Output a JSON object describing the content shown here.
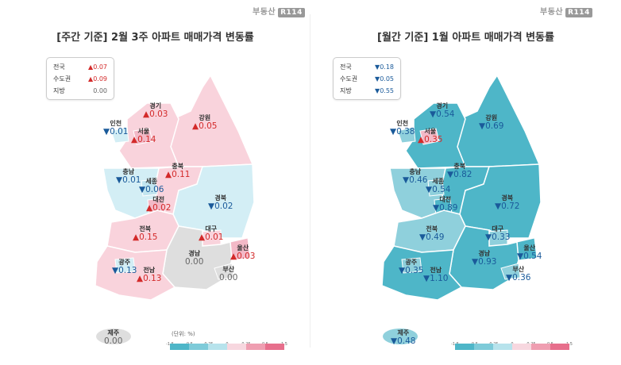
{
  "brand": {
    "name": "부동산",
    "badge": "R114"
  },
  "weekly": {
    "title": "[주간 기준] 2월 3주 아파트 매매가격 변동률",
    "summary": [
      {
        "label": "전국",
        "value": "0.07",
        "dir": "up"
      },
      {
        "label": "수도권",
        "value": "0.09",
        "dir": "up"
      },
      {
        "label": "지방",
        "value": "0.00",
        "dir": "none"
      }
    ],
    "regions": {
      "incheon": {
        "name": "인천",
        "value": "0.01",
        "dir": "down"
      },
      "gyeonggi": {
        "name": "경기",
        "value": "0.03",
        "dir": "up"
      },
      "seoul": {
        "name": "서울",
        "value": "0.14",
        "dir": "up"
      },
      "gangwon": {
        "name": "강원",
        "value": "0.05",
        "dir": "up"
      },
      "chungbuk": {
        "name": "충북",
        "value": "0.11",
        "dir": "up"
      },
      "chungnam": {
        "name": "충남",
        "value": "0.01",
        "dir": "down"
      },
      "sejong": {
        "name": "세종",
        "value": "0.06",
        "dir": "down"
      },
      "daejeon": {
        "name": "대전",
        "value": "0.02",
        "dir": "up"
      },
      "gyeongbuk": {
        "name": "경북",
        "value": "0.02",
        "dir": "down"
      },
      "jeonbuk": {
        "name": "전북",
        "value": "0.15",
        "dir": "up"
      },
      "daegu": {
        "name": "대구",
        "value": "0.01",
        "dir": "up"
      },
      "ulsan": {
        "name": "울산",
        "value": "0.03",
        "dir": "up"
      },
      "gyeongnam": {
        "name": "경남",
        "value": "0.00",
        "dir": "none"
      },
      "busan": {
        "name": "부산",
        "value": "0.00",
        "dir": "none"
      },
      "gwangju": {
        "name": "광주",
        "value": "0.13",
        "dir": "down"
      },
      "jeonnam": {
        "name": "전남",
        "value": "0.13",
        "dir": "up"
      },
      "jeju": {
        "name": "제주",
        "value": "0.00",
        "dir": "none"
      }
    }
  },
  "monthly": {
    "title": "[월간 기준] 1월 아파트 매매가격 변동률",
    "summary": [
      {
        "label": "전국",
        "value": "0.18",
        "dir": "down"
      },
      {
        "label": "수도권",
        "value": "0.05",
        "dir": "down"
      },
      {
        "label": "지방",
        "value": "0.55",
        "dir": "down"
      }
    ],
    "regions": {
      "incheon": {
        "name": "인천",
        "value": "0.38",
        "dir": "down"
      },
      "gyeonggi": {
        "name": "경기",
        "value": "0.54",
        "dir": "down"
      },
      "seoul": {
        "name": "서울",
        "value": "0.35",
        "dir": "up"
      },
      "gangwon": {
        "name": "강원",
        "value": "0.69",
        "dir": "down"
      },
      "chungbuk": {
        "name": "충북",
        "value": "0.82",
        "dir": "down"
      },
      "chungnam": {
        "name": "충남",
        "value": "0.46",
        "dir": "down"
      },
      "sejong": {
        "name": "세종",
        "value": "0.54",
        "dir": "down"
      },
      "daejeon": {
        "name": "대전",
        "value": "0.89",
        "dir": "down"
      },
      "gyeongbuk": {
        "name": "경북",
        "value": "0.72",
        "dir": "down"
      },
      "jeonbuk": {
        "name": "전북",
        "value": "0.49",
        "dir": "down"
      },
      "daegu": {
        "name": "대구",
        "value": "0.33",
        "dir": "down"
      },
      "ulsan": {
        "name": "울산",
        "value": "0.54",
        "dir": "down"
      },
      "gyeongnam": {
        "name": "경남",
        "value": "0.93",
        "dir": "down"
      },
      "busan": {
        "name": "부산",
        "value": "0.36",
        "dir": "down"
      },
      "gwangju": {
        "name": "광주",
        "value": "0.35",
        "dir": "down"
      },
      "jeonnam": {
        "name": "전남",
        "value": "1.10",
        "dir": "down"
      },
      "jeju": {
        "name": "제주",
        "value": "0.48",
        "dir": "down"
      }
    }
  },
  "legend": {
    "unit": "(단위: %)",
    "ticks": [
      "-1.5",
      "-0.5",
      "-0.25",
      "0",
      "0.25",
      "0.5",
      "1.5"
    ],
    "colors": [
      "#4eb6c8",
      "#7ecbd9",
      "#b7e3ec",
      "#f7d7df",
      "#ef9eb1",
      "#e76f8c"
    ]
  },
  "colors": {
    "weekly_up": "#f9d3dc",
    "weekly_down": "#d3eef5",
    "weekly_zero": "#dedede",
    "monthly_dark": "#4eb6c8",
    "monthly_light": "#8fd0dc",
    "up_text": "#d32a2a",
    "down_text": "#1a5a9a"
  }
}
